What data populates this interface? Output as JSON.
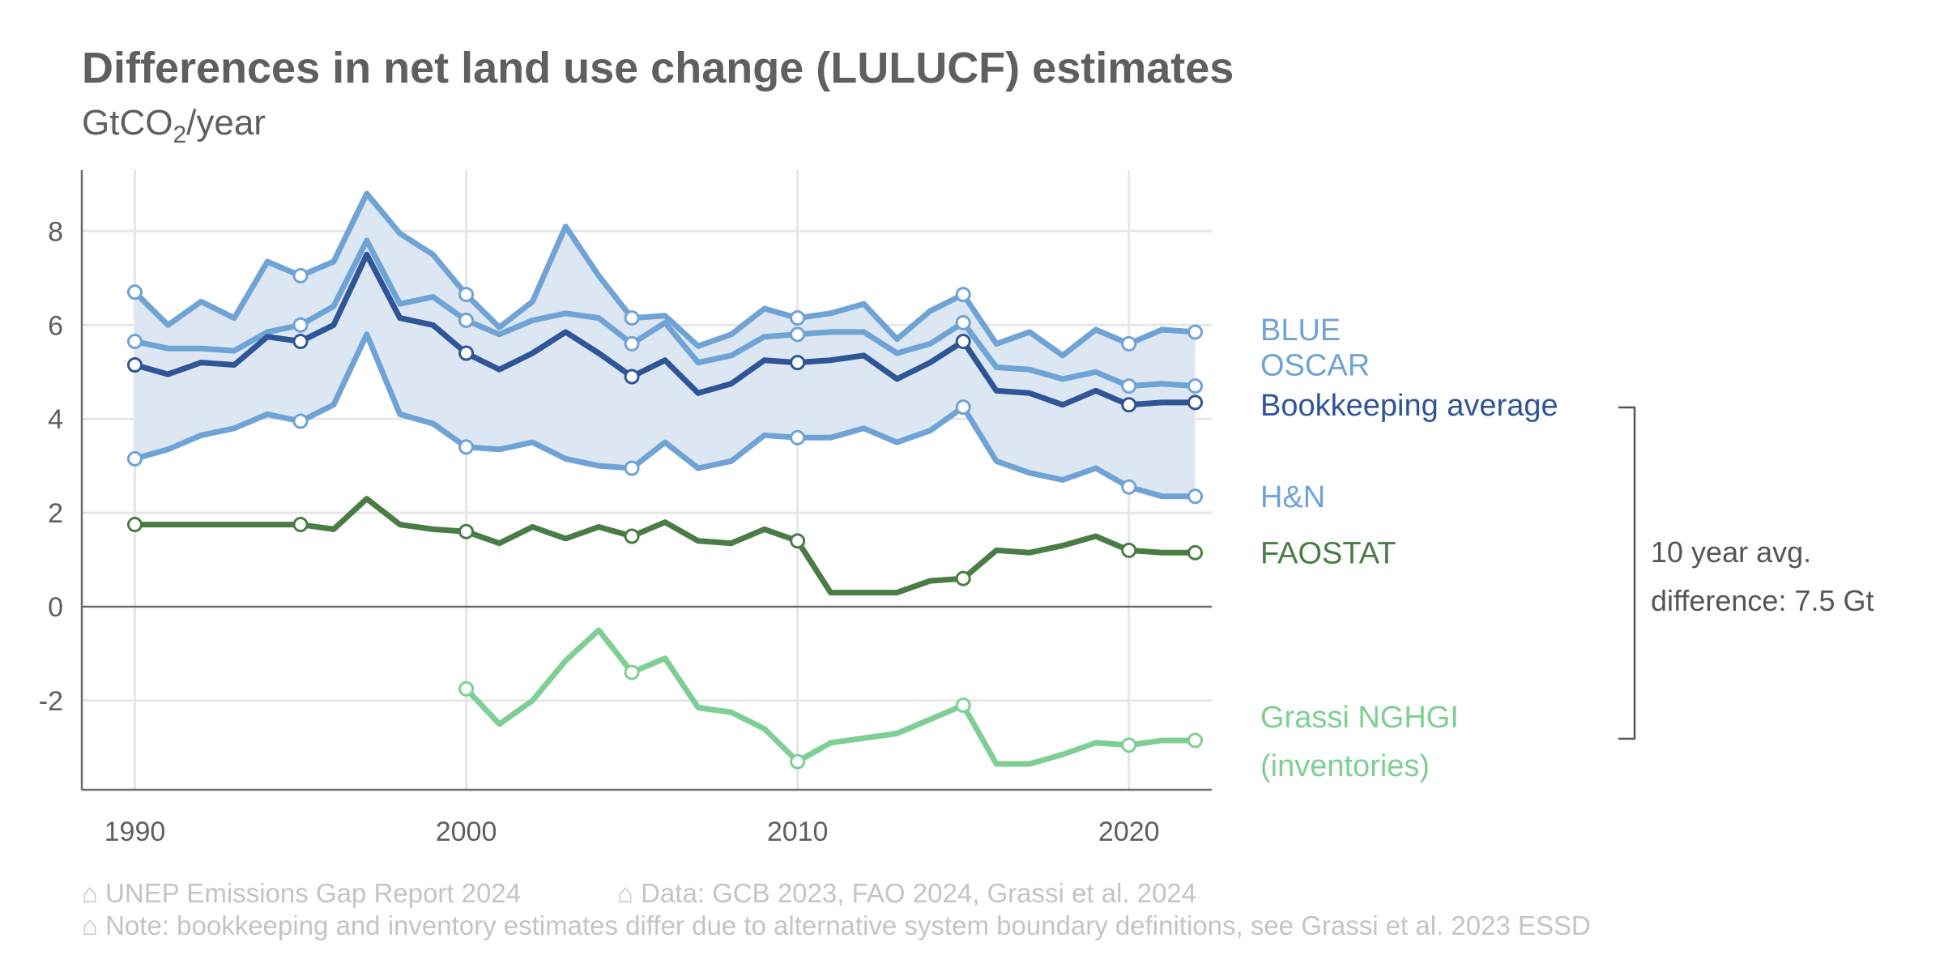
{
  "chart_data": {
    "type": "line",
    "title": "Differences in net land use change (LULUCF) estimates",
    "subtitle_main": "GtCO",
    "subtitle_sub": "2",
    "subtitle_rest": "/year",
    "xlim": [
      1988.4,
      2022.5
    ],
    "ylim": [
      -3.9,
      9.3
    ],
    "x_ticks": [
      1990,
      2000,
      2010,
      2020
    ],
    "x_tick_labels": [
      "1990",
      "2000",
      "2010",
      "2020"
    ],
    "y_ticks": [
      -2,
      0,
      2,
      4,
      6,
      8
    ],
    "y_tick_labels": [
      "-2",
      "0",
      "2",
      "4",
      "6",
      "8"
    ],
    "grid": true,
    "marker_years": [
      1990,
      1995,
      2000,
      2005,
      2010,
      2015,
      2020,
      2022
    ],
    "band": {
      "between": [
        "BLUE",
        "H&N"
      ],
      "color": "#dce7f3"
    },
    "series": [
      {
        "name": "BLUE",
        "color": "#6fa3d5",
        "label_y": 5.9,
        "x": [
          1990,
          1991,
          1992,
          1993,
          1994,
          1995,
          1996,
          1997,
          1998,
          1999,
          2000,
          2001,
          2002,
          2003,
          2004,
          2005,
          2006,
          2007,
          2008,
          2009,
          2010,
          2011,
          2012,
          2013,
          2014,
          2015,
          2016,
          2017,
          2018,
          2019,
          2020,
          2021,
          2022
        ],
        "y": [
          6.7,
          6.0,
          6.5,
          6.15,
          7.35,
          7.05,
          7.35,
          8.8,
          7.95,
          7.5,
          6.65,
          5.95,
          6.5,
          8.1,
          7.05,
          6.15,
          6.2,
          5.55,
          5.8,
          6.35,
          6.15,
          6.25,
          6.45,
          5.7,
          6.3,
          6.65,
          5.6,
          5.85,
          5.35,
          5.9,
          5.6,
          5.9,
          5.85
        ]
      },
      {
        "name": "OSCAR",
        "color": "#6fa3d5",
        "label_y": 5.15,
        "x": [
          1990,
          1991,
          1992,
          1993,
          1994,
          1995,
          1996,
          1997,
          1998,
          1999,
          2000,
          2001,
          2002,
          2003,
          2004,
          2005,
          2006,
          2007,
          2008,
          2009,
          2010,
          2011,
          2012,
          2013,
          2014,
          2015,
          2016,
          2017,
          2018,
          2019,
          2020,
          2021,
          2022
        ],
        "y": [
          5.65,
          5.5,
          5.5,
          5.45,
          5.85,
          6.0,
          6.4,
          7.8,
          6.45,
          6.6,
          6.1,
          5.8,
          6.1,
          6.25,
          6.15,
          5.6,
          6.05,
          5.2,
          5.35,
          5.75,
          5.8,
          5.85,
          5.85,
          5.4,
          5.6,
          6.05,
          5.1,
          5.05,
          4.85,
          5.0,
          4.7,
          4.75,
          4.7
        ]
      },
      {
        "name": "Bookkeeping average",
        "color": "#2f5597",
        "label_y": 4.3,
        "x": [
          1990,
          1991,
          1992,
          1993,
          1994,
          1995,
          1996,
          1997,
          1998,
          1999,
          2000,
          2001,
          2002,
          2003,
          2004,
          2005,
          2006,
          2007,
          2008,
          2009,
          2010,
          2011,
          2012,
          2013,
          2014,
          2015,
          2016,
          2017,
          2018,
          2019,
          2020,
          2021,
          2022
        ],
        "y": [
          5.15,
          4.95,
          5.2,
          5.15,
          5.75,
          5.65,
          6.0,
          7.5,
          6.15,
          6.0,
          5.4,
          5.05,
          5.4,
          5.85,
          5.4,
          4.9,
          5.25,
          4.55,
          4.75,
          5.25,
          5.2,
          5.25,
          5.35,
          4.85,
          5.2,
          5.65,
          4.6,
          4.55,
          4.3,
          4.6,
          4.3,
          4.35,
          4.35
        ]
      },
      {
        "name": "H&N",
        "color": "#6fa3d5",
        "label_y": 2.35,
        "x": [
          1990,
          1991,
          1992,
          1993,
          1994,
          1995,
          1996,
          1997,
          1998,
          1999,
          2000,
          2001,
          2002,
          2003,
          2004,
          2005,
          2006,
          2007,
          2008,
          2009,
          2010,
          2011,
          2012,
          2013,
          2014,
          2015,
          2016,
          2017,
          2018,
          2019,
          2020,
          2021,
          2022
        ],
        "y": [
          3.15,
          3.35,
          3.65,
          3.8,
          4.1,
          3.95,
          4.3,
          5.8,
          4.1,
          3.9,
          3.4,
          3.35,
          3.5,
          3.15,
          3.0,
          2.95,
          3.5,
          2.95,
          3.1,
          3.65,
          3.6,
          3.6,
          3.8,
          3.5,
          3.75,
          4.25,
          3.1,
          2.85,
          2.7,
          2.95,
          2.55,
          2.35,
          2.35
        ]
      },
      {
        "name": "FAOSTAT",
        "color": "#4a7c45",
        "label_y": 1.15,
        "x": [
          1990,
          1991,
          1992,
          1993,
          1994,
          1995,
          1996,
          1997,
          1998,
          1999,
          2000,
          2001,
          2002,
          2003,
          2004,
          2005,
          2006,
          2007,
          2008,
          2009,
          2010,
          2011,
          2012,
          2013,
          2014,
          2015,
          2016,
          2017,
          2018,
          2019,
          2020,
          2021,
          2022
        ],
        "y": [
          1.75,
          1.75,
          1.75,
          1.75,
          1.75,
          1.75,
          1.65,
          2.3,
          1.75,
          1.65,
          1.6,
          1.35,
          1.7,
          1.45,
          1.7,
          1.5,
          1.8,
          1.4,
          1.35,
          1.65,
          1.4,
          0.3,
          0.3,
          0.3,
          0.55,
          0.6,
          1.2,
          1.15,
          1.3,
          1.5,
          1.2,
          1.15,
          1.15
        ]
      },
      {
        "name": "Grassi NGHGI",
        "name_line2": "(inventories)",
        "color": "#7fcf95",
        "label_y": -2.35,
        "x": [
          2000,
          2001,
          2002,
          2003,
          2004,
          2005,
          2006,
          2007,
          2008,
          2009,
          2010,
          2011,
          2012,
          2013,
          2014,
          2015,
          2016,
          2017,
          2018,
          2019,
          2020,
          2021,
          2022
        ],
        "y": [
          -1.75,
          -2.5,
          -2.0,
          -1.15,
          -0.5,
          -1.4,
          -1.1,
          -2.15,
          -2.25,
          -2.6,
          -3.3,
          -2.9,
          -2.8,
          -2.7,
          -2.4,
          -2.1,
          -3.35,
          -3.35,
          -3.15,
          -2.9,
          -2.95,
          -2.85,
          -2.85
        ]
      }
    ],
    "annotation": {
      "line1": "10 year avg.",
      "line2": "difference: 7.5 Gt"
    }
  },
  "footer": {
    "source": "⌂ UNEP Emissions Gap Report 2024",
    "data_credit": "⌂ Data: GCB 2023, FAO 2024, Grassi et al. 2024",
    "note": "⌂ Note: bookkeeping and inventory estimates differ due to alternative system boundary definitions, see Grassi et al. 2023 ESSD"
  },
  "colors": {
    "text": "#5f5f5f",
    "grid": "#e6e6e6",
    "axis": "#6a6a6a",
    "footer": "#c4c4c4"
  }
}
